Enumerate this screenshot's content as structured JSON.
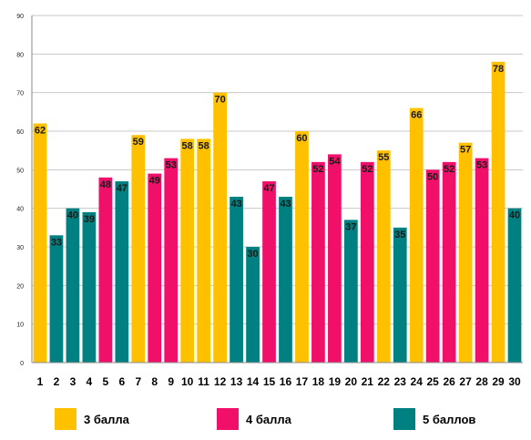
{
  "chart_data": {
    "type": "bar",
    "categories": [
      "1",
      "2",
      "3",
      "4",
      "5",
      "6",
      "7",
      "8",
      "9",
      "10",
      "11",
      "12",
      "13",
      "14",
      "15",
      "16",
      "17",
      "18",
      "19",
      "20",
      "21",
      "22",
      "23",
      "24",
      "25",
      "26",
      "27",
      "28",
      "29",
      "30"
    ],
    "values": [
      62,
      33,
      40,
      39,
      48,
      47,
      59,
      49,
      53,
      58,
      58,
      70,
      43,
      30,
      47,
      43,
      60,
      52,
      54,
      37,
      52,
      55,
      35,
      66,
      50,
      52,
      57,
      53,
      78,
      40
    ],
    "groups": [
      "3 балла",
      "5 баллов",
      "5 баллов",
      "5 баллов",
      "4 балла",
      "5 баллов",
      "3 балла",
      "4 балла",
      "4 балла",
      "3 балла",
      "3 балла",
      "3 балла",
      "5 баллов",
      "5 баллов",
      "4 балла",
      "5 баллов",
      "3 балла",
      "4 балла",
      "4 балла",
      "5 баллов",
      "4 балла",
      "3 балла",
      "5 баллов",
      "3 балла",
      "4 балла",
      "4 балла",
      "3 балла",
      "4 балла",
      "3 балла",
      "5 баллов"
    ],
    "ylim": [
      0,
      90
    ],
    "yticks": [
      0,
      10,
      20,
      30,
      40,
      50,
      60,
      70,
      80,
      90
    ],
    "grid": true,
    "legend_position": "bottom",
    "title": "",
    "xlabel": "",
    "ylabel": "",
    "legend": [
      {
        "label": "3 балла",
        "color": "#FFC000"
      },
      {
        "label": "4 балла",
        "color": "#F0106A"
      },
      {
        "label": "5 баллов",
        "color": "#008080"
      }
    ]
  }
}
